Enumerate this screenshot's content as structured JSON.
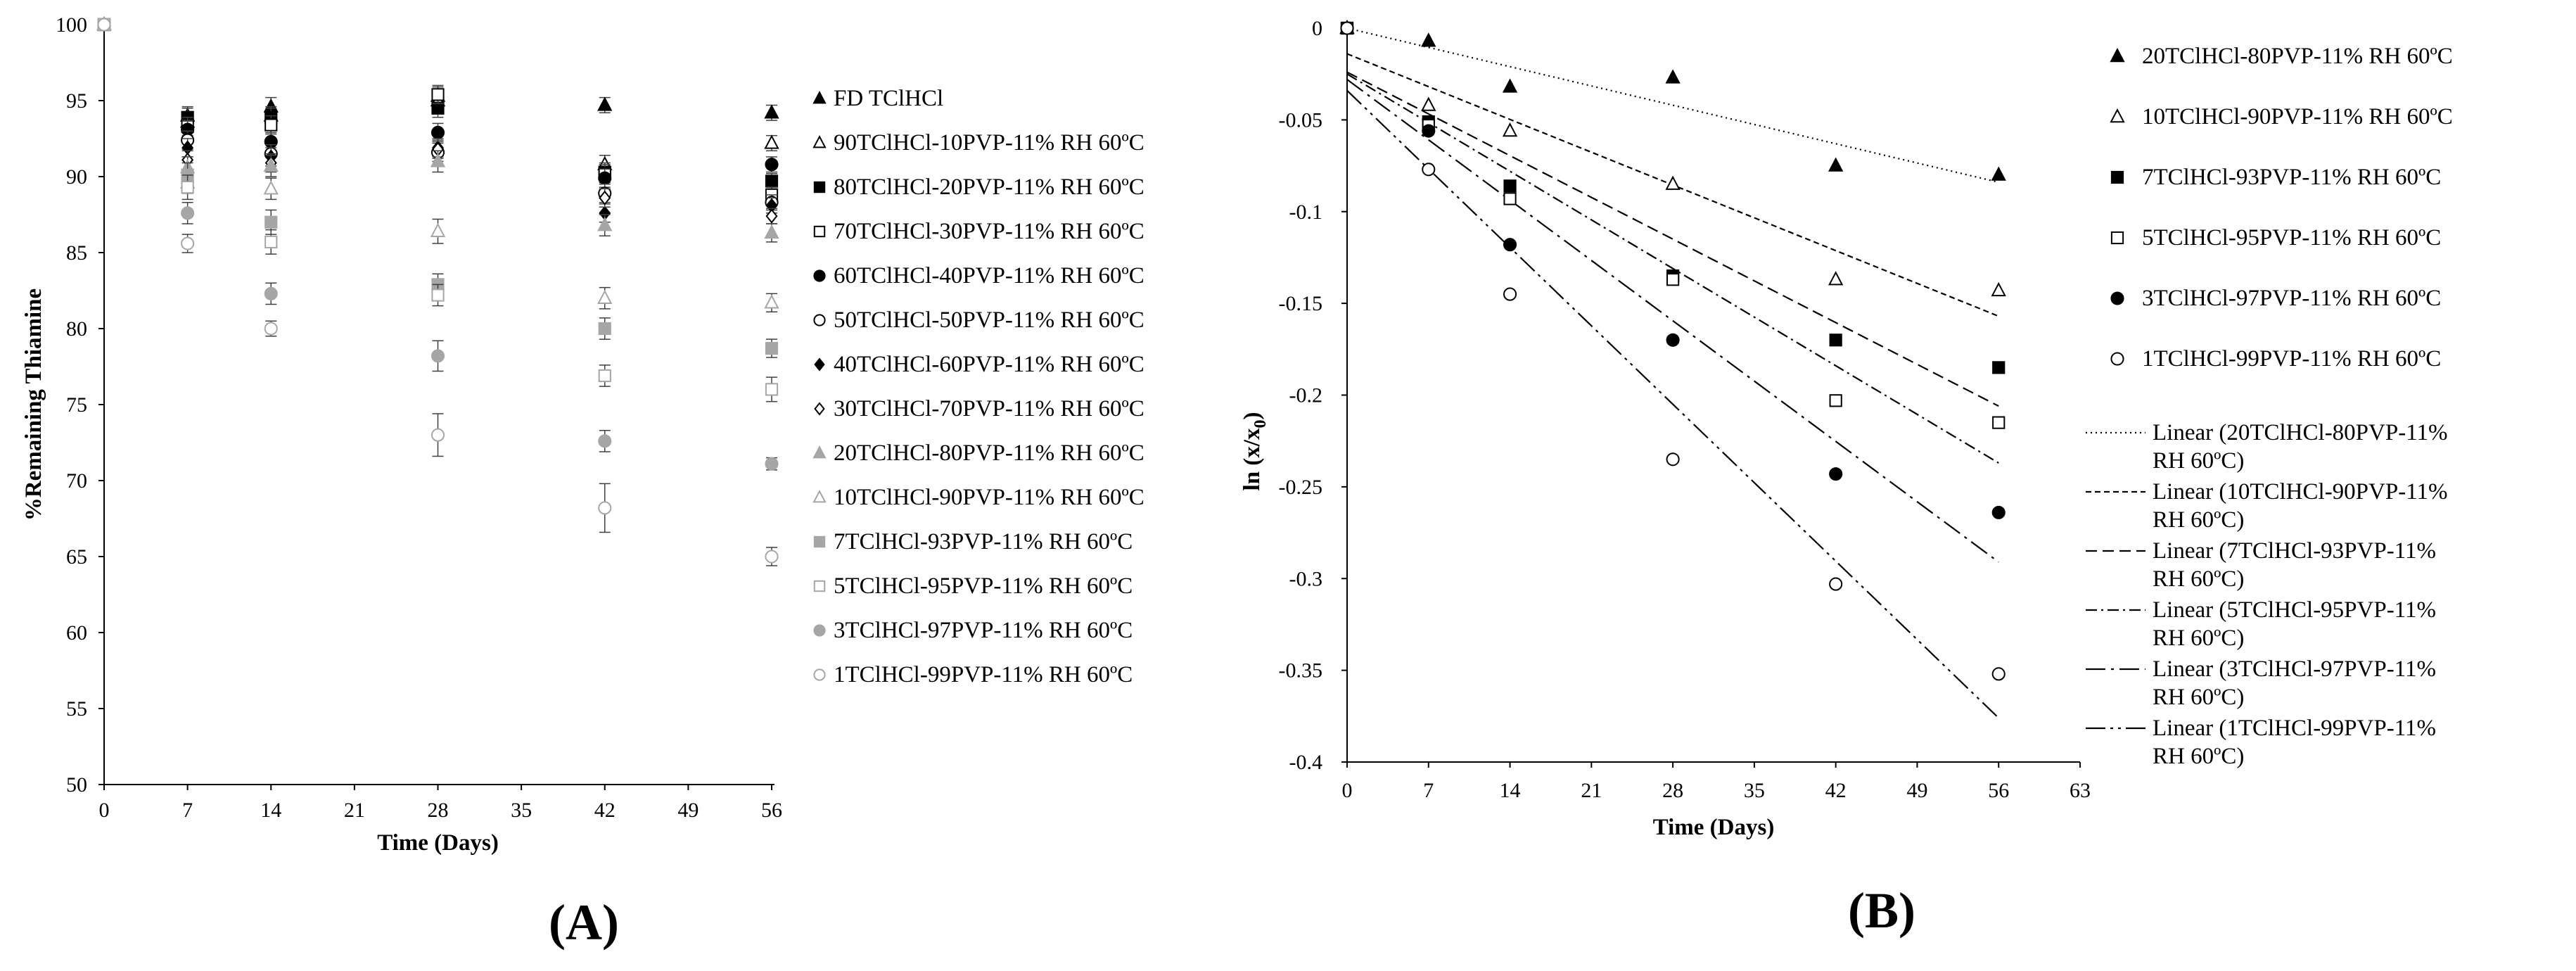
{
  "chart_data": [
    {
      "type": "scatter",
      "panel_label": "(A)",
      "title": "",
      "xlabel": "Time (Days)",
      "ylabel": "%Remaining Thiamine",
      "xlim": [
        0,
        56
      ],
      "ylim": [
        50,
        100
      ],
      "xticks": [
        0,
        7,
        14,
        21,
        28,
        35,
        42,
        49,
        56
      ],
      "yticks": [
        50,
        55,
        60,
        65,
        70,
        75,
        80,
        85,
        90,
        95,
        100
      ],
      "legend_position": "right",
      "grid": false,
      "x": [
        0,
        7,
        14,
        28,
        42,
        56
      ],
      "series": [
        {
          "name": "FD TClHCl",
          "marker": "triangle",
          "fill": "#000000",
          "values": [
            100,
            94.0,
            94.6,
            95.3,
            94.7,
            94.2
          ],
          "errors": [
            0,
            0.6,
            0.6,
            0.6,
            0.5,
            0.5
          ]
        },
        {
          "name": "90TClHCl-10PVP-11% RH 60ºC",
          "marker": "triangle-open",
          "fill": "#000000",
          "values": [
            100,
            93.6,
            94.0,
            95.0,
            90.8,
            92.2
          ],
          "errors": [
            0,
            0.6,
            0.6,
            0.6,
            0.6,
            0.5
          ]
        },
        {
          "name": "80TClHCl-20PVP-11% RH 60ºC",
          "marker": "square",
          "fill": "#000000",
          "values": [
            100,
            93.9,
            93.9,
            94.5,
            90.3,
            89.7
          ],
          "errors": [
            0,
            0.6,
            0.6,
            0.6,
            0.6,
            0.5
          ]
        },
        {
          "name": "70TClHCl-30PVP-11% RH 60ºC",
          "marker": "square-open",
          "fill": "#000000",
          "values": [
            100,
            93.3,
            93.4,
            95.4,
            90.2,
            88.8
          ],
          "errors": [
            0,
            0.6,
            0.6,
            0.6,
            0.6,
            0.5
          ]
        },
        {
          "name": "60TClHCl-40PVP-11% RH 60ºC",
          "marker": "circle",
          "fill": "#000000",
          "values": [
            100,
            93.1,
            92.3,
            92.9,
            89.9,
            90.8
          ],
          "errors": [
            0,
            0.6,
            0.6,
            0.6,
            0.6,
            0.5
          ]
        },
        {
          "name": "50TClHCl-50PVP-11% RH 60ºC",
          "marker": "circle-open",
          "fill": "#000000",
          "values": [
            100,
            92.4,
            91.5,
            91.6,
            88.9,
            88.3
          ],
          "errors": [
            0,
            0.6,
            0.6,
            0.6,
            0.6,
            0.5
          ]
        },
        {
          "name": "40TClHCl-60PVP-11% RH 60ºC",
          "marker": "diamond",
          "fill": "#000000",
          "values": [
            100,
            91.9,
            91.3,
            91.9,
            87.6,
            88.1
          ],
          "errors": [
            0,
            0.6,
            0.6,
            0.6,
            0.6,
            0.5
          ]
        },
        {
          "name": "30TClHCl-70PVP-11% RH 60ºC",
          "marker": "diamond-open",
          "fill": "#000000",
          "values": [
            100,
            91.1,
            90.9,
            91.8,
            88.6,
            87.4
          ],
          "errors": [
            0,
            0.6,
            0.6,
            0.6,
            0.6,
            0.5
          ]
        },
        {
          "name": "20TClHCl-80PVP-11% RH 60ºC",
          "marker": "triangle",
          "fill": "#a6a6a6",
          "values": [
            100,
            90.6,
            90.7,
            91.0,
            86.8,
            86.3
          ],
          "errors": [
            0,
            0.7,
            0.7,
            0.7,
            0.7,
            0.6
          ]
        },
        {
          "name": "10TClHCl-90PVP-11% RH 60ºC",
          "marker": "triangle-open",
          "fill": "#a6a6a6",
          "values": [
            100,
            89.6,
            89.2,
            86.4,
            82.0,
            81.7
          ],
          "errors": [
            0,
            0.7,
            0.7,
            0.8,
            0.7,
            0.6
          ]
        },
        {
          "name": "7TClHCl-93PVP-11% RH 60ºC",
          "marker": "square",
          "fill": "#a6a6a6",
          "values": [
            100,
            90.1,
            87.0,
            82.9,
            80.0,
            78.7
          ],
          "errors": [
            0,
            0.8,
            0.8,
            0.7,
            0.7,
            0.6
          ]
        },
        {
          "name": "5TClHCl-95PVP-11% RH 60ºC",
          "marker": "square-open",
          "fill": "#a6a6a6",
          "values": [
            100,
            89.3,
            85.7,
            82.2,
            76.9,
            76.0
          ],
          "errors": [
            0,
            0.8,
            0.8,
            0.7,
            0.7,
            0.8
          ]
        },
        {
          "name": "3TClHCl-97PVP-11% RH 60ºC",
          "marker": "circle",
          "fill": "#a6a6a6",
          "values": [
            100,
            87.6,
            82.3,
            78.2,
            72.6,
            71.1
          ],
          "errors": [
            0,
            0.7,
            0.7,
            1.0,
            0.7,
            0.4
          ]
        },
        {
          "name": "1TClHCl-99PVP-11% RH 60ºC",
          "marker": "circle-open",
          "fill": "#a6a6a6",
          "values": [
            100,
            85.6,
            80.0,
            73.0,
            68.2,
            65.0
          ],
          "errors": [
            0,
            0.6,
            0.5,
            1.4,
            1.6,
            0.6
          ]
        }
      ]
    },
    {
      "type": "scatter",
      "panel_label": "(B)",
      "title": "",
      "xlabel": "Time (Days)",
      "ylabel": "ln (x/x",
      "ylabel_sub": "0",
      "ylabel_end": ")",
      "xlim": [
        0,
        63
      ],
      "ylim": [
        -0.4,
        0
      ],
      "xticks": [
        0,
        7,
        14,
        21,
        28,
        35,
        42,
        49,
        56,
        63
      ],
      "yticks": [
        0,
        -0.05,
        -0.1,
        -0.15,
        -0.2,
        -0.25,
        -0.3,
        -0.35,
        -0.4
      ],
      "legend_position": "right",
      "grid": false,
      "x": [
        0,
        7,
        14,
        28,
        42,
        56
      ],
      "series": [
        {
          "name": "20TClHCl-80PVP-11% RH 60ºC",
          "marker": "triangle",
          "values": [
            0,
            -0.007,
            -0.032,
            -0.027,
            -0.075,
            -0.08
          ],
          "trend_name": "Linear (20TClHCl-80PVP-11% RH 60ºC)",
          "trend_style": "dotted",
          "trend_start": 0.0,
          "trend_end": -0.084
        },
        {
          "name": "10TClHCl-90PVP-11% RH 60ºC",
          "marker": "triangle-open",
          "values": [
            0,
            -0.042,
            -0.056,
            -0.085,
            -0.137,
            -0.143
          ],
          "trend_name": "Linear (10TClHCl-90PVP-11% RH 60ºC)",
          "trend_style": "dense-dash",
          "trend_start": -0.014,
          "trend_end": -0.157
        },
        {
          "name": "7TClHCl-93PVP-11% RH 60ºC",
          "marker": "square",
          "values": [
            0,
            -0.051,
            -0.086,
            -0.135,
            -0.17,
            -0.185
          ],
          "trend_name": "Linear (7TClHCl-93PVP-11% RH 60ºC)",
          "trend_style": "dash",
          "trend_start": -0.024,
          "trend_end": -0.206
        },
        {
          "name": "5TClHCl-95PVP-11% RH 60ºC",
          "marker": "square-open",
          "values": [
            0,
            -0.053,
            -0.093,
            -0.137,
            -0.203,
            -0.215
          ],
          "trend_name": "Linear (5TClHCl-95PVP-11% RH 60ºC)",
          "trend_style": "dash-dot",
          "trend_start": -0.025,
          "trend_end": -0.237
        },
        {
          "name": "3TClHCl-97PVP-11% RH 60ºC",
          "marker": "circle",
          "values": [
            0,
            -0.056,
            -0.118,
            -0.17,
            -0.243,
            -0.264
          ],
          "trend_name": "Linear (3TClHCl-97PVP-11% RH 60ºC)",
          "trend_style": "long-dash-dot",
          "trend_start": -0.028,
          "trend_end": -0.291
        },
        {
          "name": "1TClHCl-99PVP-11% RH 60ºC",
          "marker": "circle-open",
          "values": [
            0,
            -0.077,
            -0.145,
            -0.235,
            -0.303,
            -0.352
          ],
          "trend_name": "Linear (1TClHCl-99PVP-11% RH 60ºC)",
          "trend_style": "long-dash-dot-dot",
          "trend_start": -0.034,
          "trend_end": -0.376
        }
      ]
    }
  ]
}
